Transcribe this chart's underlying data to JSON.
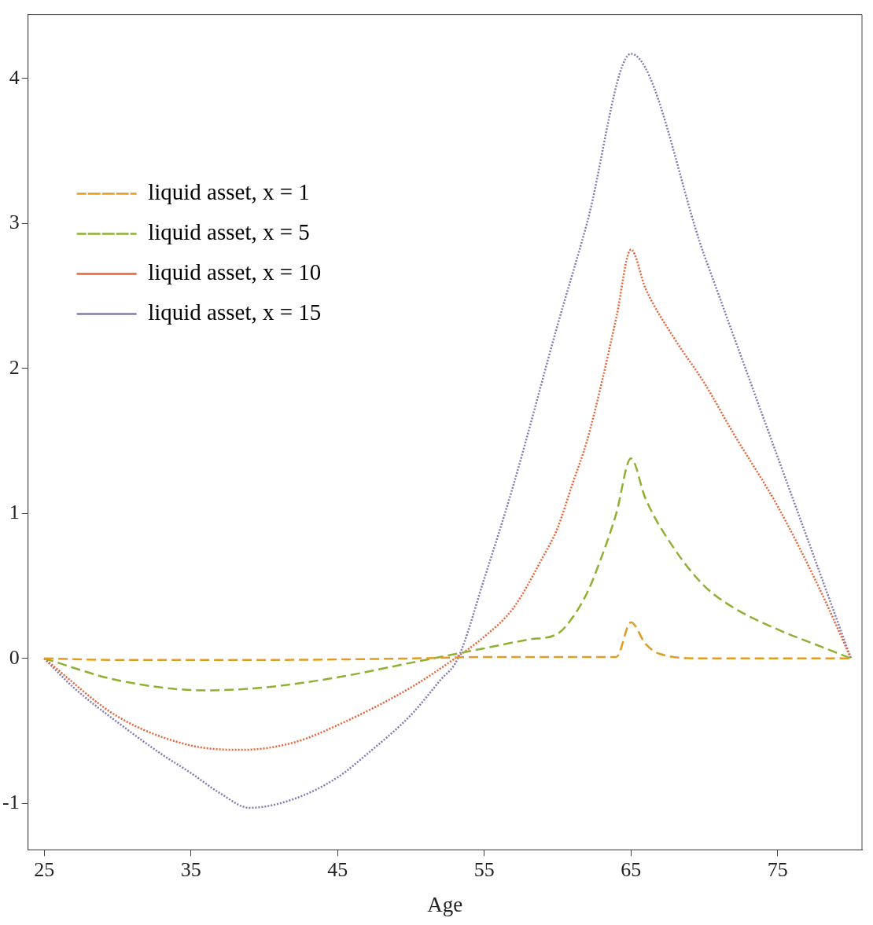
{
  "chart_data": {
    "type": "line",
    "xlabel": "Age",
    "xlim": [
      23.9,
      80.75
    ],
    "xticks": [
      25,
      35,
      45,
      55,
      65,
      75
    ],
    "ylim": [
      -1.32,
      4.44
    ],
    "yticks": [
      -1,
      0,
      1,
      2,
      3,
      4
    ],
    "grid": false,
    "legend": "top left",
    "marker": "none",
    "series": [
      {
        "name": "liquid asset, x = 1",
        "color": "#e19c24",
        "line_style": "dashed",
        "x": [
          25,
          30,
          40,
          50,
          55,
          64,
          65,
          66,
          67,
          70,
          80
        ],
        "values": [
          0,
          -0.01,
          -0.01,
          0,
          0.01,
          0.01,
          0.25,
          0.1,
          0.03,
          0,
          0
        ]
      },
      {
        "name": "liquid asset, x = 5",
        "color": "#8fb032",
        "line_style": "dashed",
        "x": [
          25,
          30,
          36,
          40,
          45,
          50,
          55,
          58,
          60,
          61,
          62,
          63,
          64,
          65,
          66,
          68,
          70,
          72,
          75,
          78,
          80
        ],
        "values": [
          0,
          -0.15,
          -0.22,
          -0.2,
          -0.13,
          -0.03,
          0.07,
          0.13,
          0.17,
          0.28,
          0.45,
          0.7,
          1.0,
          1.38,
          1.1,
          0.75,
          0.5,
          0.35,
          0.2,
          0.08,
          0
        ]
      },
      {
        "name": "liquid asset, x = 10",
        "color": "#eb6235",
        "line_style": "dotted",
        "x": [
          25,
          30,
          35,
          38.5,
          42,
          45,
          50,
          53,
          55,
          57,
          59,
          60,
          61,
          62,
          63,
          64,
          65,
          66,
          68,
          70,
          72,
          75,
          78,
          80
        ],
        "values": [
          0,
          -0.4,
          -0.6,
          -0.63,
          -0.58,
          -0.46,
          -0.2,
          0,
          0.15,
          0.35,
          0.7,
          0.9,
          1.2,
          1.5,
          1.9,
          2.35,
          2.82,
          2.55,
          2.2,
          1.9,
          1.55,
          1.05,
          0.45,
          0
        ]
      },
      {
        "name": "liquid asset, x = 15",
        "color": "#8778b3",
        "line_style": "dotted",
        "x": [
          25,
          27,
          30,
          33,
          35,
          37,
          39,
          42,
          45,
          47,
          50,
          52,
          53.2,
          55,
          57,
          60,
          62,
          65,
          70,
          75,
          80
        ],
        "values": [
          0,
          -0.2,
          -0.44,
          -0.66,
          -0.79,
          -0.93,
          -1.03,
          -0.97,
          -0.82,
          -0.66,
          -0.39,
          -0.15,
          0,
          0.55,
          1.2,
          2.3,
          3.0,
          4.17,
          2.78,
          1.39,
          0
        ]
      }
    ]
  }
}
